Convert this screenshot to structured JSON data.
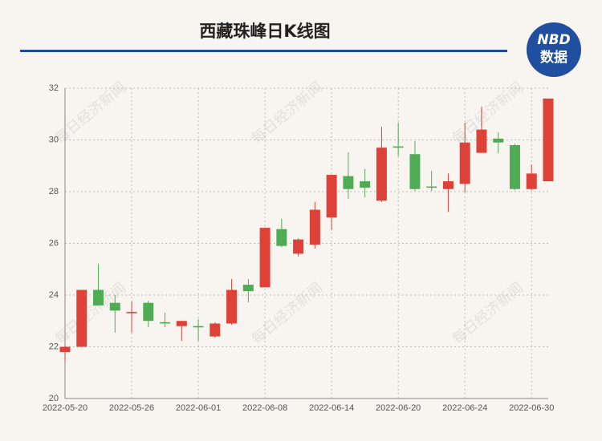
{
  "chart_data": {
    "type": "candlestick",
    "title": "西藏珠峰日K线图",
    "logo": {
      "top": "NBD",
      "bottom": "数据"
    },
    "watermark": "每日经济新闻",
    "categories": [
      "2022-05-20",
      null,
      null,
      null,
      "2022-05-26",
      null,
      null,
      null,
      "2022-06-01",
      null,
      null,
      null,
      "2022-06-08",
      null,
      null,
      null,
      "2022-06-14",
      null,
      null,
      null,
      "2022-06-20",
      null,
      null,
      null,
      "2022-06-24",
      null,
      null,
      null,
      "2022-06-30",
      null
    ],
    "up_color": "#de4137",
    "down_color": "#4fac54",
    "open": [
      21.8,
      22.0,
      24.2,
      23.7,
      23.3,
      23.7,
      22.95,
      22.8,
      22.8,
      22.4,
      22.9,
      24.4,
      24.3,
      26.55,
      25.6,
      25.95,
      27.0,
      28.6,
      28.4,
      27.65,
      29.75,
      29.45,
      28.2,
      28.1,
      28.3,
      29.5,
      30.05,
      29.8,
      28.1,
      28.4
    ],
    "high": [
      22.05,
      24.2,
      25.2,
      24.0,
      23.75,
      23.78,
      23.32,
      23.0,
      23.07,
      22.95,
      24.62,
      24.62,
      26.6,
      26.95,
      26.2,
      27.6,
      28.65,
      29.52,
      28.87,
      30.51,
      30.67,
      29.95,
      28.8,
      28.7,
      30.67,
      31.29,
      30.3,
      29.85,
      29.05,
      31.6
    ],
    "low": [
      21.46,
      22.0,
      23.6,
      22.55,
      22.55,
      22.76,
      22.76,
      22.23,
      22.23,
      22.35,
      22.85,
      23.72,
      24.3,
      25.85,
      25.49,
      25.8,
      26.51,
      27.72,
      27.78,
      27.6,
      29.37,
      28.03,
      28.03,
      27.22,
      27.97,
      29.5,
      29.49,
      28.05,
      28.05,
      28.4
    ],
    "close": [
      22.0,
      24.2,
      23.6,
      23.4,
      23.35,
      23.0,
      22.9,
      23.0,
      22.75,
      22.9,
      24.2,
      24.15,
      26.6,
      25.9,
      26.15,
      27.3,
      28.65,
      28.1,
      28.15,
      29.7,
      29.7,
      28.1,
      28.15,
      28.4,
      29.9,
      30.4,
      29.9,
      28.1,
      28.7,
      31.6
    ],
    "ylim": [
      20,
      32
    ],
    "yticks": [
      20,
      22,
      24,
      26,
      28,
      30,
      32
    ],
    "grid": true
  }
}
